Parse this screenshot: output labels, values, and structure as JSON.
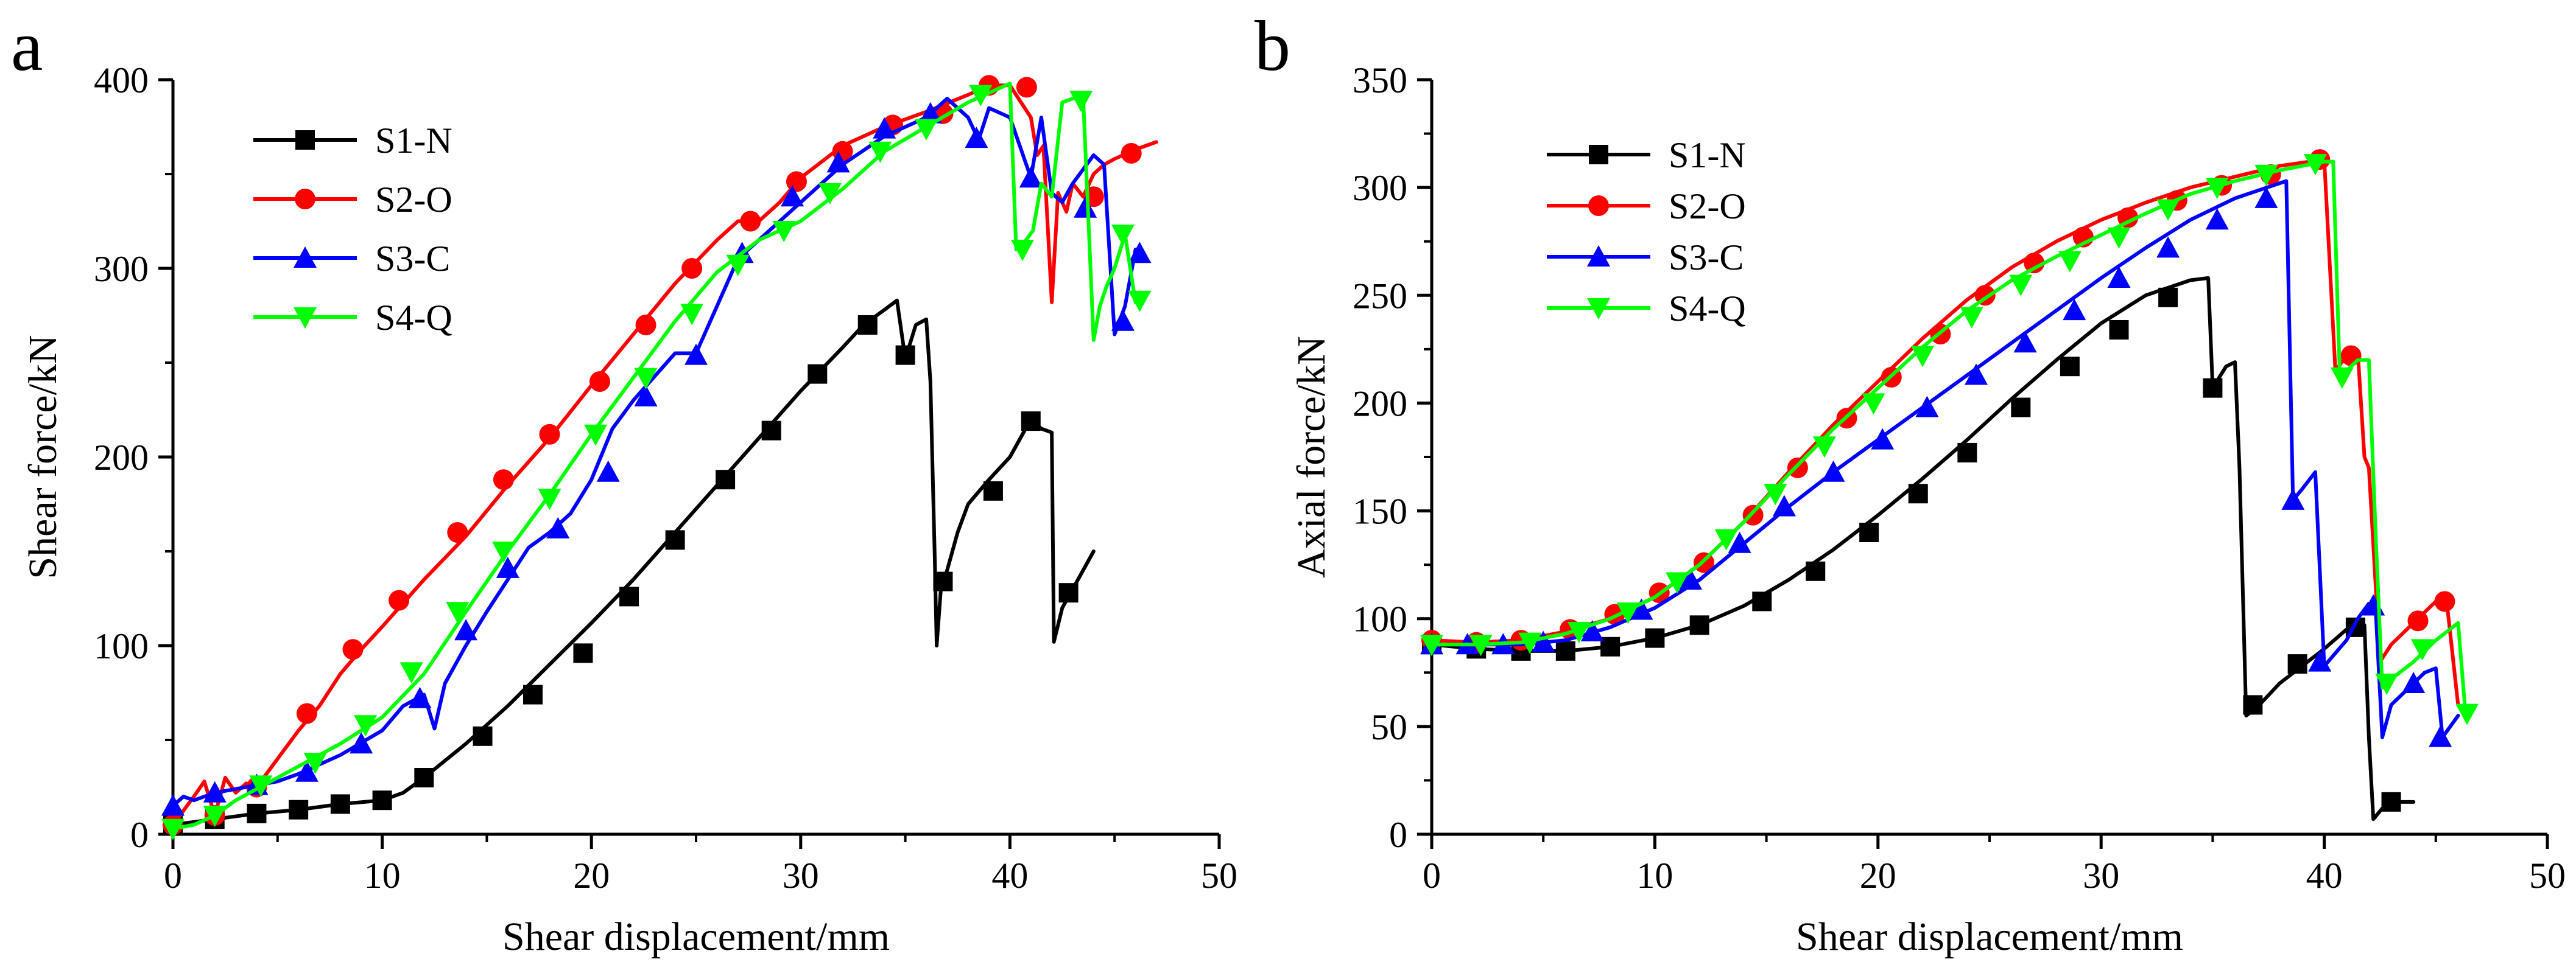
{
  "chart_data": [
    {
      "panel": "a",
      "type": "line",
      "title": "",
      "xlabel": "Shear displacement/mm",
      "ylabel": "Shear force/kN",
      "xlim": [
        0,
        50
      ],
      "ylim": [
        0,
        400
      ],
      "xticks": [
        0,
        10,
        20,
        30,
        40,
        50
      ],
      "yticks": [
        0,
        100,
        200,
        300,
        400
      ],
      "legend_position": "top-left",
      "series": [
        {
          "name": "S1-N",
          "color": "#000000",
          "marker": "square",
          "x": [
            0,
            2,
            4,
            6,
            8,
            10,
            11,
            12,
            14,
            16,
            18,
            20,
            22,
            24,
            26,
            28,
            30,
            32,
            33,
            34,
            34.6,
            35,
            35.5,
            36,
            36.2,
            36.4,
            36.5,
            36.7,
            37,
            37.5,
            38,
            39,
            40,
            41,
            41.5,
            42,
            42.1,
            42.5,
            43,
            43.5,
            44
          ],
          "y": [
            5,
            8,
            11,
            13,
            16,
            18,
            22,
            30,
            48,
            68,
            90,
            112,
            135,
            160,
            185,
            210,
            235,
            258,
            270,
            278,
            283,
            252,
            270,
            273,
            240,
            150,
            100,
            130,
            140,
            160,
            175,
            188,
            200,
            220,
            215,
            213,
            102,
            120,
            130,
            140,
            150
          ],
          "marker_x": [
            0,
            2,
            4,
            6,
            8,
            10,
            12,
            14.8,
            17.2,
            19.6,
            21.8,
            24,
            26.4,
            28.6,
            30.8,
            33.2,
            35,
            36.8,
            39.2,
            41,
            42.8
          ],
          "marker_y": [
            5,
            8,
            11,
            13,
            16,
            18,
            30,
            52,
            74,
            96,
            126,
            156,
            188,
            214,
            244,
            270,
            254,
            134,
            182,
            219,
            128
          ]
        },
        {
          "name": "S2-O",
          "color": "#ff0000",
          "marker": "circle",
          "x": [
            0,
            1,
            1.5,
            2,
            2.5,
            3,
            3.5,
            4,
            5,
            6,
            7,
            8,
            9,
            10,
            12,
            14,
            16,
            18,
            20,
            22,
            24,
            26,
            27,
            28,
            29,
            30,
            32,
            34,
            36,
            38,
            39,
            40,
            41,
            41.3,
            41.6,
            42,
            42.3,
            42.7,
            43,
            43.5,
            44,
            44.5,
            45,
            46,
            47
          ],
          "y": [
            5,
            20,
            28,
            10,
            30,
            22,
            27,
            25,
            40,
            55,
            68,
            85,
            98,
            110,
            135,
            158,
            185,
            210,
            238,
            265,
            292,
            315,
            325,
            325,
            335,
            348,
            365,
            375,
            383,
            392,
            397,
            397,
            380,
            360,
            365,
            282,
            340,
            330,
            345,
            338,
            350,
            355,
            358,
            363,
            367
          ],
          "marker_x": [
            0,
            2,
            4,
            6.4,
            8.6,
            10.8,
            13.6,
            15.8,
            18,
            20.4,
            22.6,
            24.8,
            27.6,
            29.8,
            32,
            34.4,
            36.8,
            39,
            40.8,
            44,
            45.8
          ],
          "marker_y": [
            5,
            10,
            25,
            64,
            98,
            124,
            160,
            188,
            212,
            240,
            270,
            300,
            325,
            346,
            362,
            376,
            382,
            397,
            396,
            338,
            361
          ]
        },
        {
          "name": "S3-C",
          "color": "#0000ff",
          "marker": "triangle-up",
          "x": [
            0,
            0.5,
            1,
            2,
            3,
            4,
            5,
            6,
            8,
            10,
            11,
            12,
            12.5,
            13,
            14,
            15,
            16,
            17,
            18,
            19,
            20,
            21,
            22,
            24,
            25,
            26,
            27,
            28,
            30,
            32,
            34,
            36,
            37,
            38,
            38.5,
            39,
            40,
            41,
            41.5,
            42,
            42.5,
            43,
            44,
            44.5,
            45,
            45.5,
            46,
            46.5
          ],
          "y": [
            15,
            20,
            18,
            22,
            24,
            26,
            28,
            32,
            42,
            55,
            68,
            74,
            56,
            80,
            100,
            118,
            135,
            152,
            160,
            170,
            188,
            215,
            230,
            255,
            255,
            280,
            305,
            315,
            335,
            355,
            370,
            380,
            390,
            380,
            368,
            385,
            380,
            348,
            380,
            340,
            335,
            345,
            360,
            355,
            265,
            280,
            310,
            305
          ],
          "marker_x": [
            0,
            2,
            4,
            6.4,
            9,
            11.8,
            14,
            16,
            18.4,
            20.8,
            22.6,
            25,
            27.2,
            29.6,
            31.8,
            34,
            36.2,
            38.4,
            41,
            43.6,
            45.4,
            46.2
          ],
          "marker_y": [
            15,
            22,
            26,
            33,
            48,
            72,
            108,
            141,
            162,
            192,
            232,
            254,
            308,
            338,
            356,
            374,
            382,
            369,
            348,
            332,
            272,
            308
          ]
        },
        {
          "name": "S4-Q",
          "color": "#00ff00",
          "marker": "triangle-down",
          "x": [
            0,
            1,
            2,
            3,
            4,
            5,
            6,
            8,
            10,
            12,
            14,
            16,
            18,
            20,
            22,
            24,
            26,
            28,
            30,
            32,
            34,
            36,
            38,
            40,
            40.3,
            40.7,
            41.1,
            41.5,
            42,
            42.5,
            43,
            43.5,
            44,
            44.3,
            44.6,
            45,
            45.5,
            46
          ],
          "y": [
            3,
            5,
            10,
            18,
            24,
            30,
            36,
            48,
            62,
            85,
            118,
            150,
            180,
            212,
            242,
            272,
            298,
            315,
            325,
            342,
            362,
            375,
            388,
            398,
            310,
            314,
            320,
            345,
            338,
            388,
            390,
            390,
            262,
            280,
            290,
            300,
            318,
            282
          ],
          "marker_x": [
            0,
            2,
            4.2,
            6.8,
            9.2,
            11.4,
            13.6,
            15.8,
            18,
            20.2,
            22.6,
            24.8,
            27,
            29.2,
            31.4,
            33.8,
            36,
            38.6,
            40.6,
            43.4,
            45.4,
            46.2
          ],
          "marker_y": [
            3,
            10,
            26,
            38,
            58,
            86,
            118,
            150,
            178,
            212,
            242,
            276,
            302,
            320,
            340,
            362,
            374,
            392,
            310,
            389,
            318,
            283
          ]
        }
      ]
    },
    {
      "panel": "b",
      "type": "line",
      "title": "",
      "xlabel": "Shear displacement/mm",
      "ylabel": "Axial force/kN",
      "xlim": [
        0,
        50
      ],
      "ylim": [
        0,
        350
      ],
      "xticks": [
        0,
        10,
        20,
        30,
        40,
        50
      ],
      "yticks": [
        0,
        50,
        100,
        150,
        200,
        250,
        300,
        350
      ],
      "legend_position": "top-left",
      "series": [
        {
          "name": "S1-N",
          "color": "#000000",
          "marker": "square",
          "x": [
            0,
            2,
            4,
            6,
            8,
            10,
            12,
            14,
            16,
            18,
            20,
            22,
            24,
            26,
            28,
            30,
            32,
            34,
            34.8,
            35,
            35.6,
            36,
            36.2,
            36.5,
            37,
            38,
            39,
            40,
            41,
            41.8,
            42,
            42.2,
            42.6,
            43,
            44
          ],
          "y": [
            88,
            86,
            85,
            85,
            87,
            91,
            97,
            106,
            118,
            132,
            148,
            165,
            183,
            202,
            220,
            237,
            250,
            257,
            258,
            207,
            217,
            219,
            170,
            55,
            59,
            70,
            78,
            86,
            95,
            97,
            45,
            7,
            12,
            15,
            15
          ],
          "marker_x": [
            0,
            2,
            4,
            6,
            8,
            10,
            12,
            14.8,
            17.2,
            19.6,
            21.8,
            24,
            26.4,
            28.6,
            30.8,
            33,
            35,
            36.8,
            38.8,
            41.4,
            43
          ],
          "marker_y": [
            88,
            86,
            85,
            85,
            87,
            91,
            97,
            108,
            122,
            140,
            158,
            177,
            198,
            217,
            234,
            249,
            207,
            60,
            79,
            96,
            15
          ]
        },
        {
          "name": "S2-O",
          "color": "#ff0000",
          "marker": "circle",
          "x": [
            0,
            2,
            4,
            6,
            8,
            10,
            12,
            14,
            16,
            18,
            20,
            22,
            24,
            26,
            28,
            30,
            32,
            34,
            36,
            38,
            40,
            40.5,
            41,
            41.5,
            41.8,
            42,
            42.5,
            43,
            44,
            45,
            45.5,
            46
          ],
          "y": [
            90,
            89,
            90,
            94,
            100,
            110,
            125,
            145,
            168,
            190,
            210,
            230,
            248,
            263,
            275,
            285,
            293,
            300,
            305,
            310,
            313,
            215,
            222,
            224,
            175,
            170,
            80,
            88,
            98,
            108,
            107,
            60
          ],
          "marker_x": [
            0,
            2,
            4,
            6.2,
            8.2,
            10.2,
            12.2,
            14.4,
            16.4,
            18.6,
            20.6,
            22.8,
            24.8,
            27,
            29.2,
            31.2,
            33.4,
            35.4,
            37.6,
            39.8,
            41.2,
            44.2,
            45.4
          ],
          "marker_y": [
            90,
            89,
            90,
            95,
            102,
            112,
            126,
            148,
            170,
            193,
            212,
            232,
            250,
            265,
            277,
            286,
            294,
            301,
            306,
            313,
            222,
            99,
            108
          ]
        },
        {
          "name": "S3-C",
          "color": "#0000ff",
          "marker": "triangle-up",
          "x": [
            0,
            2,
            4,
            6,
            8,
            10,
            12,
            14,
            16,
            18,
            20,
            22,
            24,
            26,
            28,
            30,
            32,
            34,
            36,
            38,
            38.3,
            38.6,
            39,
            39.6,
            40,
            41,
            41.5,
            42,
            42.3,
            42.6,
            43,
            44,
            44.5,
            45,
            45.3,
            46
          ],
          "y": [
            88,
            88,
            88,
            90,
            96,
            105,
            118,
            135,
            152,
            168,
            183,
            198,
            213,
            228,
            243,
            258,
            272,
            285,
            295,
            302,
            303,
            155,
            160,
            168,
            78,
            90,
            100,
            107,
            105,
            45,
            60,
            70,
            75,
            77,
            45,
            55
          ],
          "marker_x": [
            0,
            1.6,
            3.2,
            5,
            7.2,
            9.4,
            11.6,
            13.8,
            15.8,
            18,
            20.2,
            22.2,
            24.4,
            26.6,
            28.8,
            30.8,
            33,
            35.2,
            37.4,
            38.6,
            39.8,
            42.2,
            44,
            45.2
          ],
          "marker_y": [
            88,
            88,
            88,
            89,
            94,
            104,
            118,
            135,
            152,
            168,
            183,
            198,
            213,
            228,
            243,
            258,
            272,
            285,
            295,
            155,
            80,
            106,
            70,
            45
          ]
        },
        {
          "name": "S4-Q",
          "color": "#00ff00",
          "marker": "triangle-down",
          "x": [
            0,
            2,
            4,
            6,
            8,
            10,
            12,
            14,
            16,
            18,
            20,
            22,
            24,
            26,
            28,
            30,
            32,
            34,
            36,
            38,
            40,
            40.4,
            40.7,
            41,
            41.5,
            42,
            42.3,
            42.6,
            43,
            44,
            45,
            46,
            46.3,
            46.5
          ],
          "y": [
            88,
            88,
            89,
            93,
            100,
            110,
            125,
            145,
            167,
            188,
            207,
            226,
            243,
            257,
            268,
            278,
            288,
            297,
            303,
            308,
            312,
            312,
            212,
            215,
            220,
            220,
            140,
            68,
            72,
            80,
            90,
            98,
            60,
            55
          ],
          "marker_x": [
            0,
            2.2,
            4.4,
            6.6,
            8.8,
            11,
            13.2,
            15.4,
            17.6,
            19.8,
            22,
            24.2,
            26.4,
            28.6,
            30.8,
            33,
            35.2,
            37.4,
            39.6,
            40.8,
            42.8,
            44.4,
            46.4
          ],
          "marker_y": [
            88,
            88,
            89,
            94,
            103,
            117,
            137,
            158,
            180,
            200,
            222,
            240,
            255,
            266,
            277,
            290,
            300,
            306,
            311,
            212,
            70,
            86,
            56
          ]
        }
      ]
    }
  ],
  "panels": {
    "a": {
      "letter": "a"
    },
    "b": {
      "letter": "b"
    }
  }
}
